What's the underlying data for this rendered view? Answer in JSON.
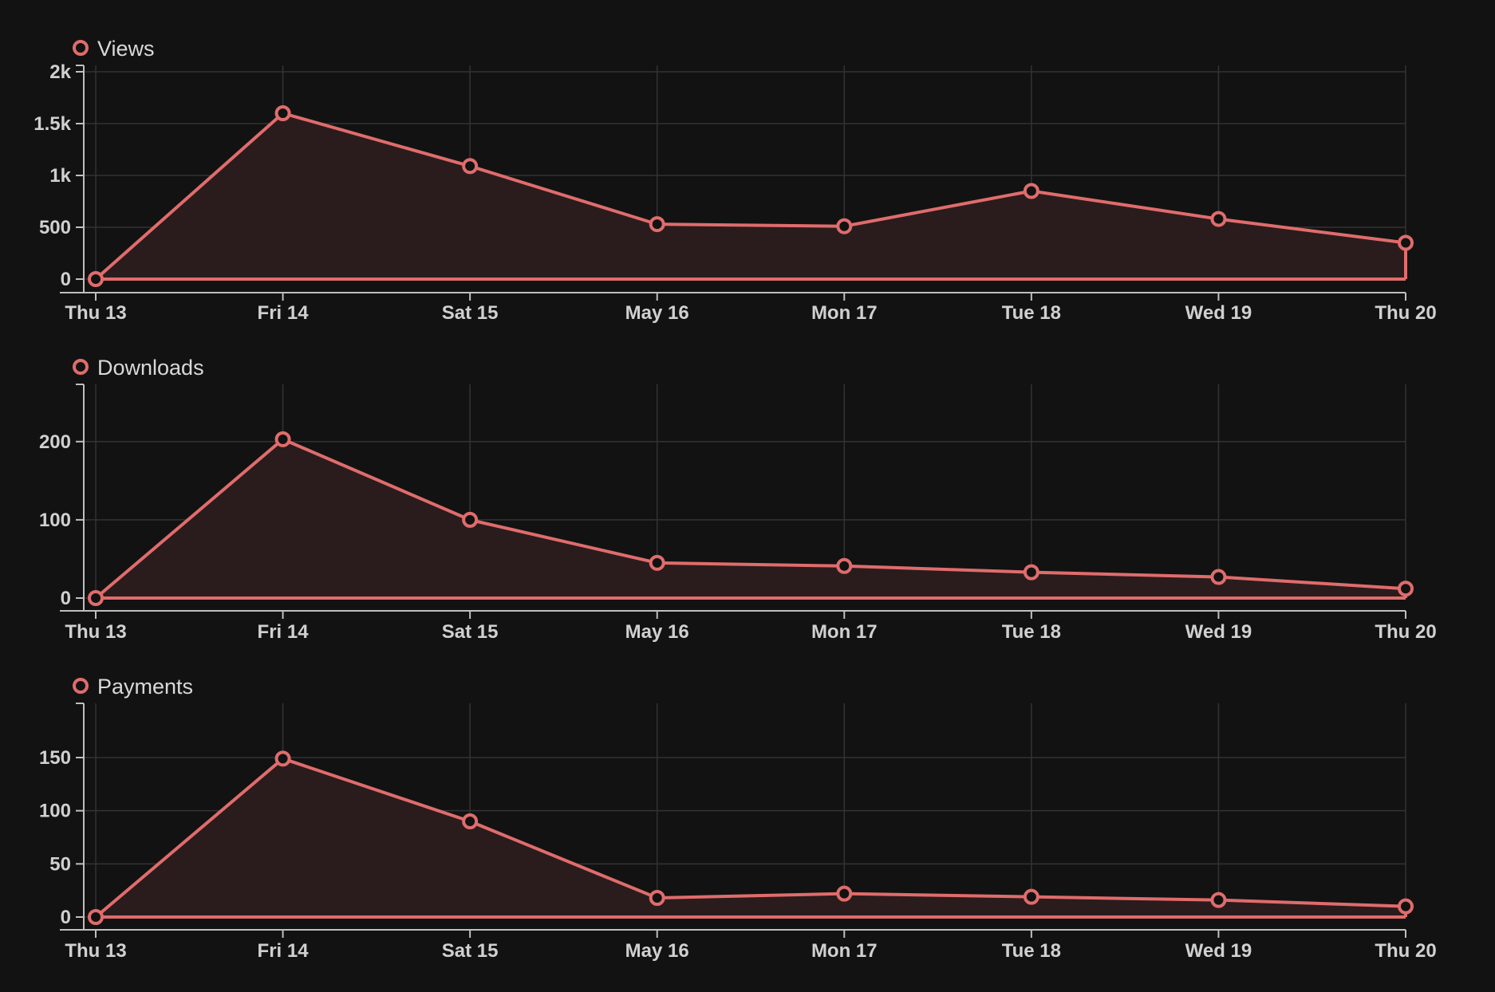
{
  "theme": {
    "background": "#121212",
    "series_color": "#e06c6c",
    "area_fill": "#2a1c1c",
    "grid_color": "#333333",
    "axis_color": "#bfbfbf"
  },
  "chart_data": [
    {
      "type": "area",
      "title": "",
      "legend": "Views",
      "legend_placement": "top-left",
      "categories": [
        "Thu 13",
        "Fri 14",
        "Sat 15",
        "May 16",
        "Mon 17",
        "Tue 18",
        "Wed 19",
        "Thu 20"
      ],
      "series": [
        {
          "name": "Views",
          "values": [
            0,
            1600,
            1090,
            530,
            510,
            850,
            580,
            350
          ]
        }
      ],
      "ylim": [
        0,
        2000
      ],
      "yticks": [
        0,
        500,
        1000,
        1500,
        2000
      ],
      "ytick_labels": [
        "0",
        "500",
        "1k",
        "1.5k",
        "2k"
      ],
      "grid": true
    },
    {
      "type": "area",
      "title": "",
      "legend": "Downloads",
      "legend_placement": "top-left",
      "categories": [
        "Thu 13",
        "Fri 14",
        "Sat 15",
        "May 16",
        "Mon 17",
        "Tue 18",
        "Wed 19",
        "Thu 20"
      ],
      "series": [
        {
          "name": "Downloads",
          "values": [
            0,
            203,
            100,
            45,
            41,
            33,
            27,
            12
          ]
        }
      ],
      "ylim": [
        0,
        265
      ],
      "yticks": [
        0,
        100,
        200
      ],
      "ytick_labels": [
        "0",
        "100",
        "200"
      ],
      "grid": true
    },
    {
      "type": "area",
      "title": "",
      "legend": "Payments",
      "legend_placement": "top-left",
      "categories": [
        "Thu 13",
        "Fri 14",
        "Sat 15",
        "May 16",
        "Mon 17",
        "Tue 18",
        "Wed 19",
        "Thu 20"
      ],
      "series": [
        {
          "name": "Payments",
          "values": [
            0,
            149,
            90,
            18,
            22,
            19,
            16,
            10
          ]
        }
      ],
      "ylim": [
        0,
        195
      ],
      "yticks": [
        0,
        50,
        100,
        150
      ],
      "ytick_labels": [
        "0",
        "50",
        "100",
        "150"
      ],
      "grid": true
    }
  ]
}
